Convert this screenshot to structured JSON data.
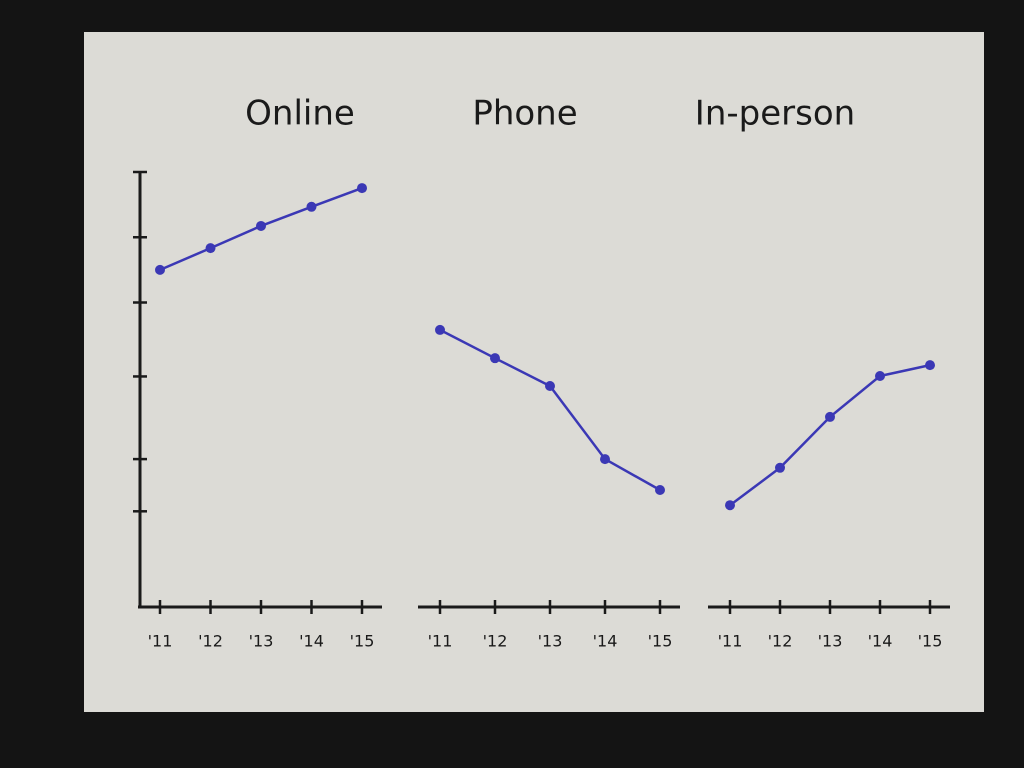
{
  "chart_data": [
    {
      "type": "line",
      "title": "Online",
      "categories": [
        "'11",
        "'12",
        "'13",
        "'14",
        "'15"
      ],
      "values": [
        77.5,
        82.5,
        87.6,
        92,
        96.3
      ],
      "color": "#3b38b5",
      "ylim": [
        0,
        100
      ],
      "yticks": [
        22,
        34,
        53,
        70,
        85,
        100
      ]
    },
    {
      "type": "line",
      "title": "Phone",
      "categories": [
        "'11",
        "'12",
        "'13",
        "'14",
        "'15"
      ],
      "values": [
        63.7,
        57.2,
        50.8,
        34,
        26.9
      ],
      "color": "#3b38b5",
      "ylim": [
        0,
        100
      ]
    },
    {
      "type": "line",
      "title": "In-person",
      "categories": [
        "'11",
        "'12",
        "'13",
        "'14",
        "'15"
      ],
      "values": [
        23.4,
        32,
        43.7,
        53.1,
        55.6
      ],
      "color": "#3b38b5",
      "ylim": [
        0,
        100
      ]
    }
  ]
}
